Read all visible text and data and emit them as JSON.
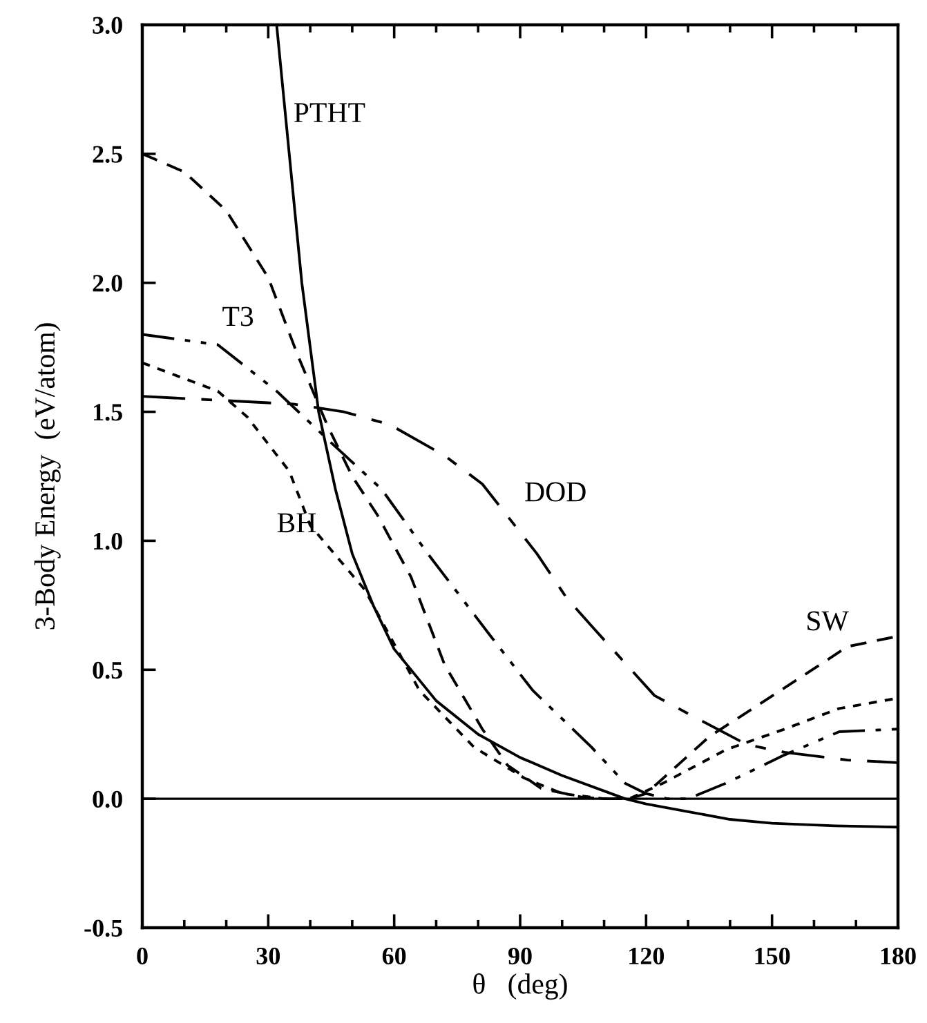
{
  "chart_data": {
    "type": "line",
    "xlabel": "θ   (deg)",
    "ylabel": "3-Body Energy  (eV/atom)",
    "xlim": [
      0,
      180
    ],
    "xticks": [
      0,
      30,
      60,
      90,
      120,
      150,
      180
    ],
    "ylim": [
      -0.5,
      3.0
    ],
    "yticks": [
      -0.5,
      {
        "value": 0,
        "label": "0.0"
      },
      0.5,
      {
        "value": 1,
        "label": "1.0"
      },
      1.5,
      {
        "value": 2,
        "label": "2.0"
      },
      2.5,
      {
        "value": 3,
        "label": "3.0"
      }
    ],
    "grid": false,
    "legend": false,
    "marker": "none",
    "ref_lines": [
      {
        "axis": "y",
        "value": 0,
        "color": "#000000",
        "line_style": "solid"
      }
    ],
    "series": [
      {
        "name": "PTHT",
        "color": "#000000",
        "line_style": "solid",
        "x": [
          32,
          35,
          38,
          42,
          46,
          50,
          55,
          60,
          70,
          80,
          90,
          100,
          110,
          115,
          120,
          130,
          140,
          150,
          165,
          180
        ],
        "values": [
          3.0,
          2.5,
          2.0,
          1.5,
          1.2,
          0.95,
          0.75,
          0.58,
          0.38,
          0.25,
          0.16,
          0.09,
          0.03,
          0.0,
          -0.02,
          -0.05,
          -0.08,
          -0.095,
          -0.105,
          -0.11
        ]
      },
      {
        "name": "SW",
        "color": "#000000",
        "line_style": "dashed",
        "x": [
          0,
          10,
          20,
          30,
          37,
          44,
          50,
          56,
          64,
          72,
          81,
          87,
          95,
          105,
          110,
          116,
          120,
          135,
          153,
          168,
          180
        ],
        "values": [
          2.5,
          2.43,
          2.28,
          2.02,
          1.72,
          1.45,
          1.25,
          1.1,
          0.86,
          0.52,
          0.27,
          0.13,
          0.04,
          0.005,
          0.0,
          0.0,
          0.02,
          0.24,
          0.43,
          0.59,
          0.63
        ]
      },
      {
        "name": "T3",
        "color": "#000000",
        "line_style": "dashdotdot",
        "x": [
          0,
          18,
          32,
          45,
          57,
          68,
          83,
          93,
          107,
          115,
          120,
          125,
          130,
          139,
          153,
          166,
          180
        ],
        "values": [
          1.8,
          1.76,
          1.58,
          1.38,
          1.2,
          0.95,
          0.63,
          0.42,
          0.2,
          0.06,
          0.02,
          0.0,
          0.0,
          0.06,
          0.17,
          0.26,
          0.27
        ]
      },
      {
        "name": "BH",
        "color": "#000000",
        "line_style": "dotted",
        "x": [
          0,
          18,
          25,
          35,
          40,
          53,
          66,
          79,
          91,
          100,
          110,
          116,
          124,
          139,
          153,
          166,
          180
        ],
        "values": [
          1.69,
          1.58,
          1.48,
          1.27,
          1.06,
          0.81,
          0.42,
          0.2,
          0.08,
          0.02,
          0.0,
          0.0,
          0.06,
          0.19,
          0.27,
          0.35,
          0.39
        ]
      },
      {
        "name": "DOD",
        "color": "#000000",
        "line_style": "longdash",
        "x": [
          0,
          36,
          48,
          59,
          72,
          81,
          94,
          101,
          107,
          122,
          130,
          144,
          153,
          168,
          180
        ],
        "values": [
          1.56,
          1.53,
          1.5,
          1.45,
          1.33,
          1.22,
          0.95,
          0.78,
          0.67,
          0.4,
          0.33,
          0.21,
          0.18,
          0.15,
          0.14
        ]
      }
    ]
  }
}
